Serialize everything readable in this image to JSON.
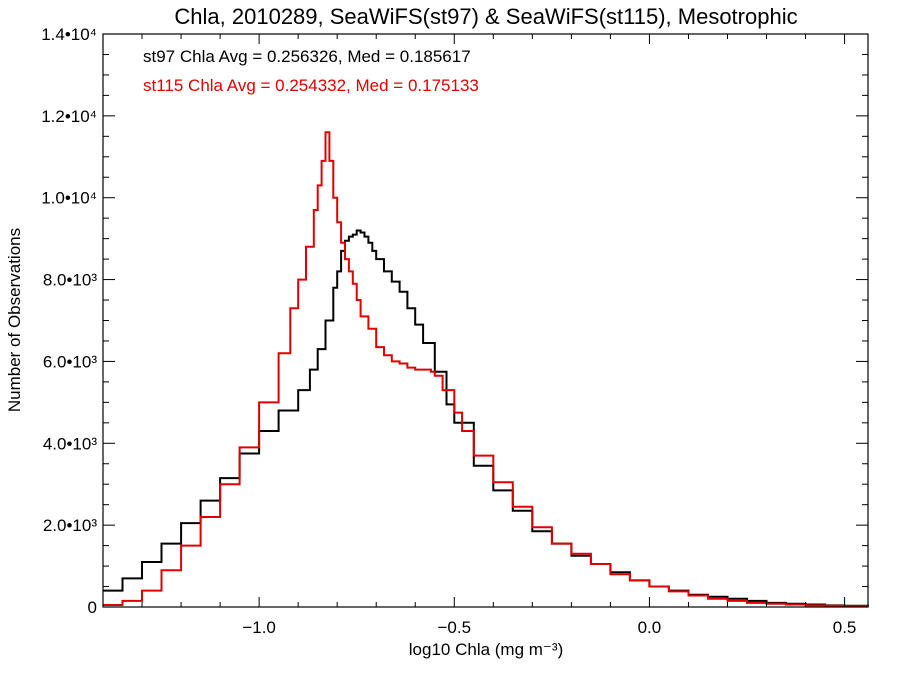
{
  "chart_data": {
    "type": "line",
    "title": "Chla, 2010289, SeaWiFS(st97) & SeaWiFS(st115), Mesotrophic",
    "xlabel": "log10 Chla (mg m⁻³)",
    "ylabel": "Number of Observations",
    "xlim": [
      -1.4,
      0.56
    ],
    "ylim": [
      0,
      14000
    ],
    "grid": false,
    "x_ticks": [
      {
        "value": -1.0,
        "label": "−1.0"
      },
      {
        "value": -0.5,
        "label": "−0.5"
      },
      {
        "value": 0.0,
        "label": "0.0"
      },
      {
        "value": 0.5,
        "label": "0.5"
      }
    ],
    "y_ticks": [
      {
        "value": 0,
        "label": "0"
      },
      {
        "value": 2000,
        "label": "2.0•10³"
      },
      {
        "value": 4000,
        "label": "4.0•10³"
      },
      {
        "value": 6000,
        "label": "6.0•10³"
      },
      {
        "value": 8000,
        "label": "8.0•10³"
      },
      {
        "value": 10000,
        "label": "1.0•10⁴"
      },
      {
        "value": 12000,
        "label": "1.2•10⁴"
      },
      {
        "value": 14000,
        "label": "1.4•10⁴"
      }
    ],
    "annotations": [
      {
        "text": "st97 Chla Avg = 0.256326, Med = 0.185617",
        "color": "#000000"
      },
      {
        "text": "st115 Chla Avg = 0.254332, Med = 0.175133",
        "color": "#e00000"
      }
    ],
    "series": [
      {
        "color": "#000000",
        "x": [
          -1.4,
          -1.35,
          -1.3,
          -1.25,
          -1.2,
          -1.15,
          -1.1,
          -1.05,
          -1.0,
          -0.95,
          -0.9,
          -0.87,
          -0.85,
          -0.83,
          -0.81,
          -0.8,
          -0.79,
          -0.78,
          -0.77,
          -0.76,
          -0.75,
          -0.74,
          -0.73,
          -0.72,
          -0.71,
          -0.7,
          -0.68,
          -0.66,
          -0.64,
          -0.62,
          -0.6,
          -0.58,
          -0.55,
          -0.52,
          -0.5,
          -0.45,
          -0.4,
          -0.35,
          -0.3,
          -0.25,
          -0.2,
          -0.15,
          -0.1,
          -0.05,
          0.0,
          0.05,
          0.1,
          0.15,
          0.2,
          0.25,
          0.3,
          0.35,
          0.4,
          0.45,
          0.5,
          0.56
        ],
        "y": [
          400,
          700,
          1100,
          1550,
          2050,
          2600,
          3150,
          3750,
          4300,
          4800,
          5300,
          5800,
          6300,
          7000,
          7800,
          8200,
          8700,
          8950,
          9050,
          9100,
          9200,
          9150,
          9050,
          8900,
          8700,
          8500,
          8200,
          7950,
          7700,
          7300,
          6900,
          6450,
          5750,
          4950,
          4500,
          3450,
          2850,
          2350,
          1850,
          1550,
          1250,
          1050,
          850,
          650,
          500,
          400,
          300,
          250,
          200,
          150,
          100,
          80,
          60,
          40,
          30,
          20
        ]
      },
      {
        "color": "#e00000",
        "x": [
          -1.4,
          -1.35,
          -1.3,
          -1.25,
          -1.2,
          -1.15,
          -1.1,
          -1.05,
          -1.0,
          -0.95,
          -0.92,
          -0.9,
          -0.88,
          -0.86,
          -0.85,
          -0.84,
          -0.83,
          -0.82,
          -0.81,
          -0.8,
          -0.79,
          -0.78,
          -0.77,
          -0.76,
          -0.75,
          -0.74,
          -0.72,
          -0.7,
          -0.68,
          -0.66,
          -0.64,
          -0.62,
          -0.6,
          -0.58,
          -0.56,
          -0.55,
          -0.53,
          -0.5,
          -0.48,
          -0.45,
          -0.4,
          -0.35,
          -0.3,
          -0.25,
          -0.2,
          -0.15,
          -0.1,
          -0.05,
          0.0,
          0.05,
          0.1,
          0.15,
          0.2,
          0.25,
          0.3,
          0.35,
          0.4,
          0.45,
          0.5,
          0.56
        ],
        "y": [
          50,
          150,
          400,
          900,
          1500,
          2200,
          3000,
          3900,
          5000,
          6200,
          7300,
          8000,
          8800,
          9700,
          10300,
          10900,
          11600,
          10900,
          10000,
          9400,
          8900,
          8500,
          8200,
          7900,
          7500,
          7100,
          6800,
          6350,
          6150,
          6000,
          5950,
          5850,
          5800,
          5800,
          5750,
          5650,
          5300,
          4750,
          4300,
          3700,
          3050,
          2450,
          1950,
          1550,
          1300,
          1050,
          800,
          650,
          500,
          380,
          280,
          200,
          150,
          100,
          80,
          60,
          40,
          30,
          20,
          10
        ]
      }
    ]
  }
}
